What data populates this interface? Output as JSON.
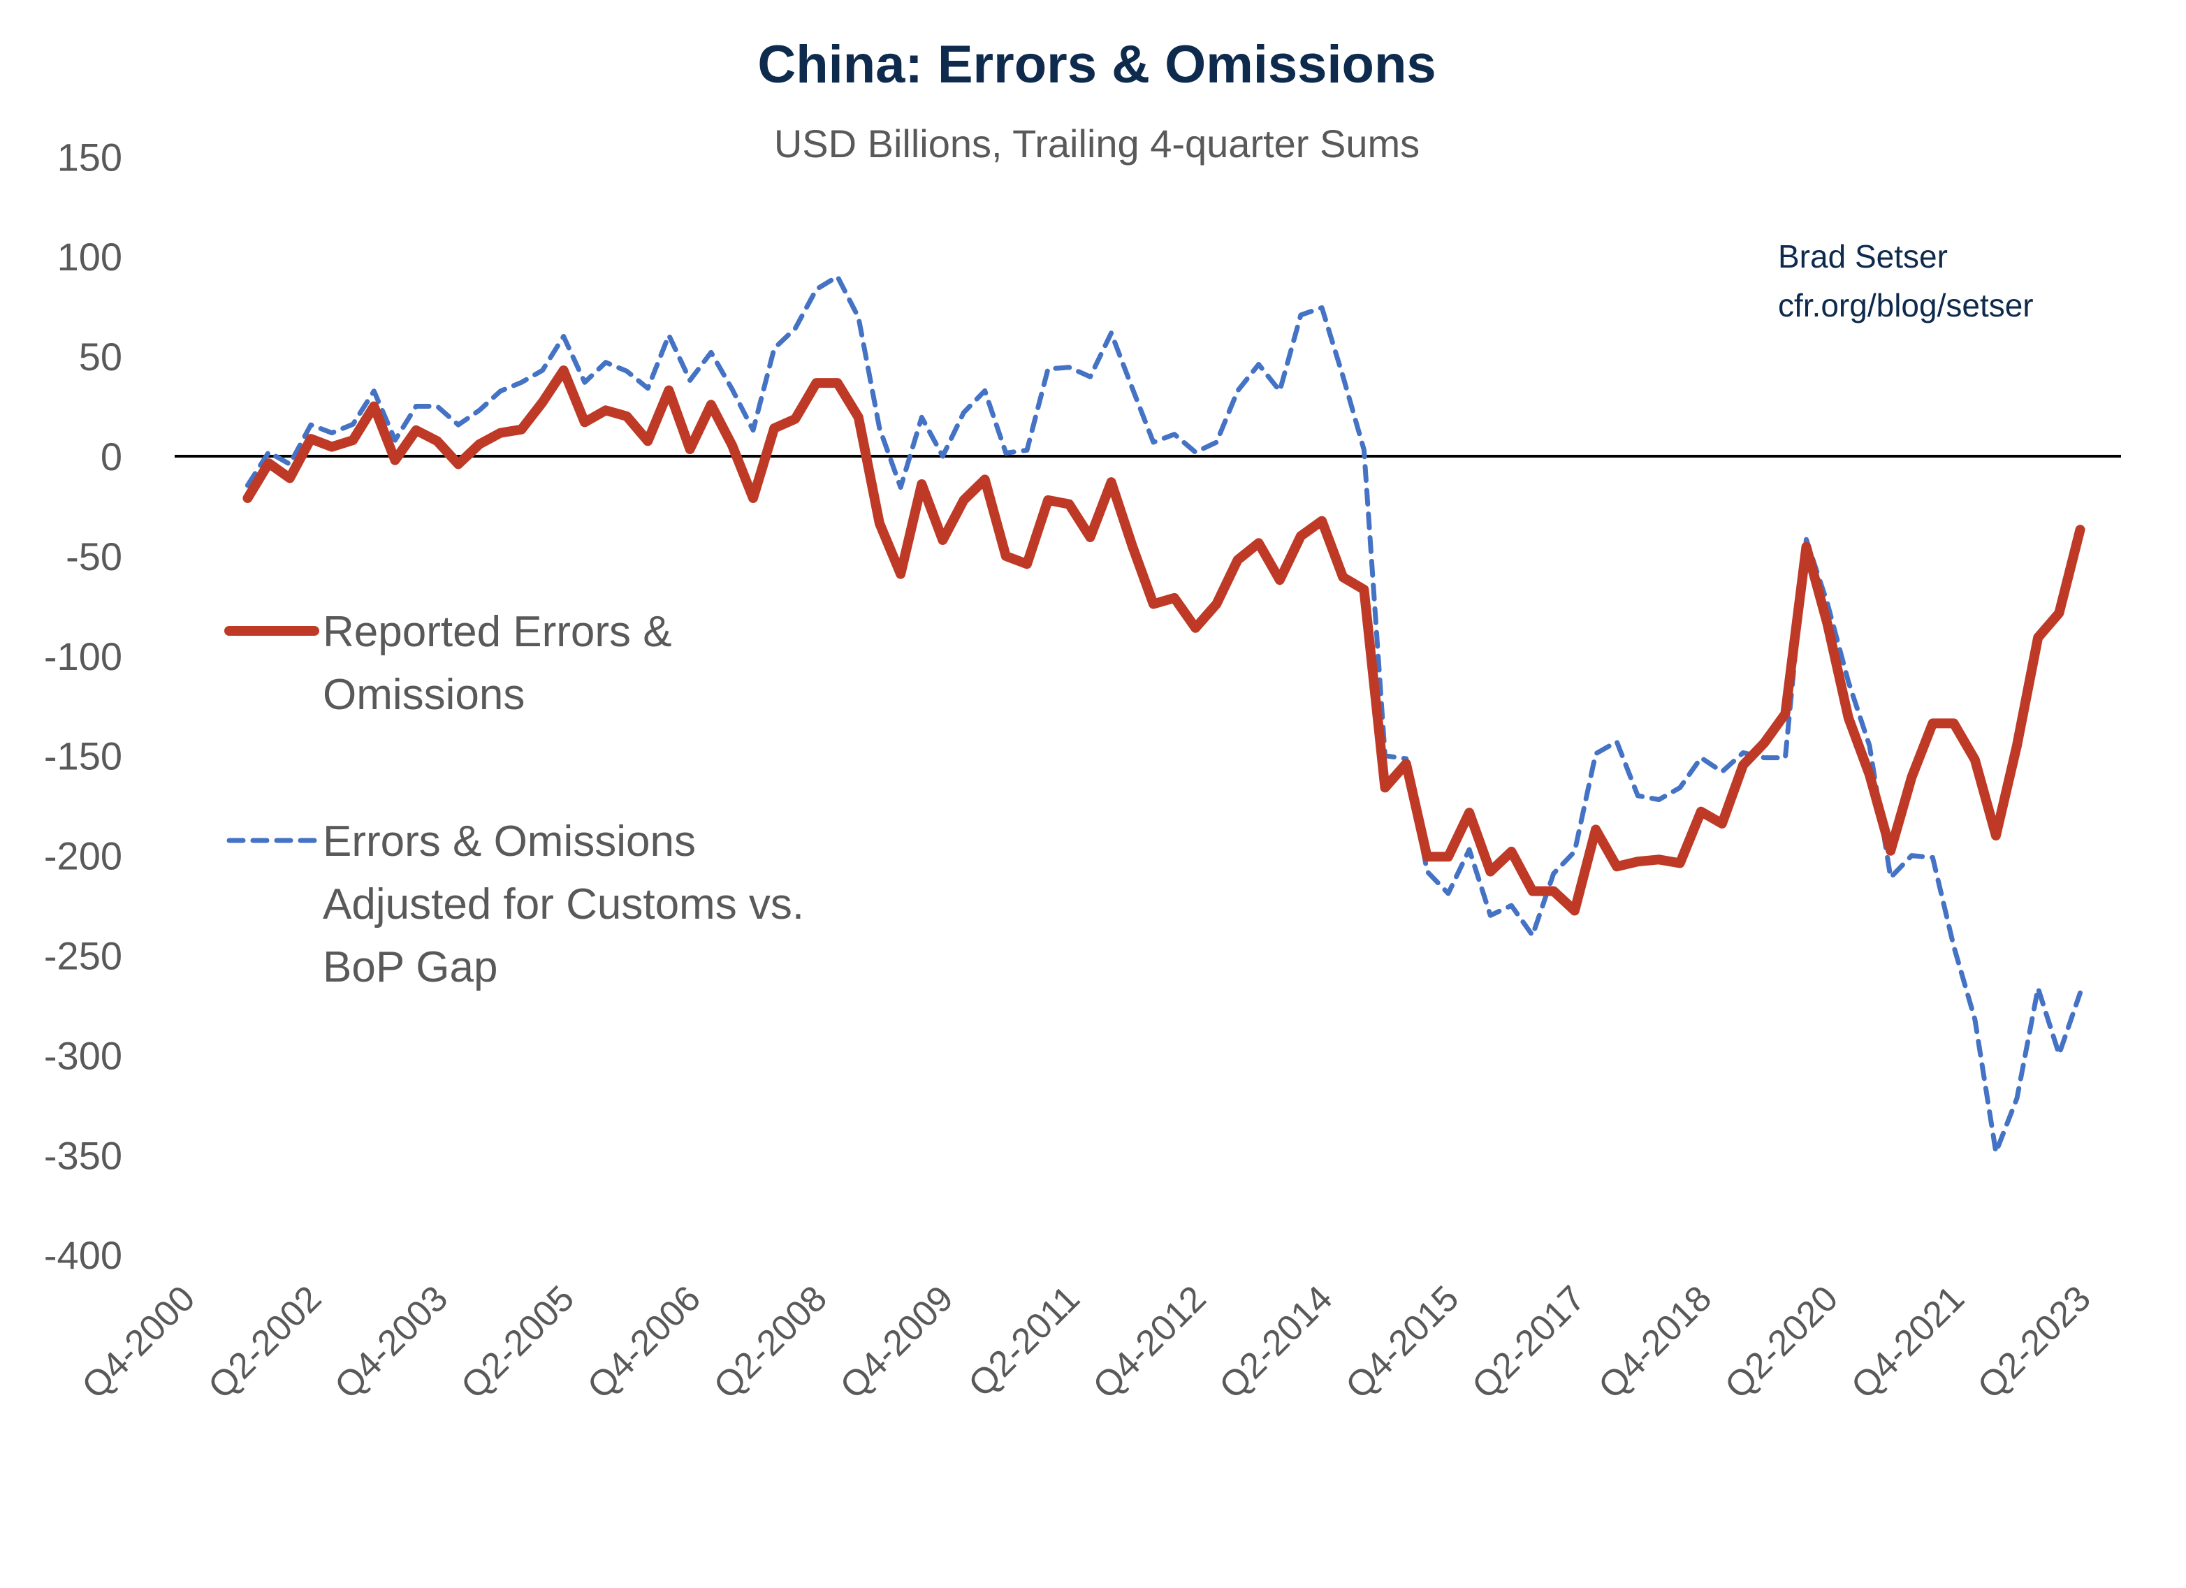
{
  "chart_data": {
    "type": "line",
    "title": "China: Errors & Omissions",
    "subtitle": "USD Billions, Trailing 4-quarter Sums",
    "annotation": [
      "Brad Setser",
      "cfr.org/blog/setser"
    ],
    "xlabel": "",
    "ylabel": "",
    "ylim": [
      -400,
      150
    ],
    "y_ticks": [
      150,
      100,
      50,
      0,
      -50,
      -100,
      -150,
      -200,
      -250,
      -300,
      -350,
      -400
    ],
    "x_tick_labels": [
      "Q4-2000",
      "Q2-2002",
      "Q4-2003",
      "Q2-2005",
      "Q4-2006",
      "Q2-2008",
      "Q4-2009",
      "Q2-2011",
      "Q4-2012",
      "Q2-2014",
      "Q4-2015",
      "Q2-2017",
      "Q4-2018",
      "Q2-2020",
      "Q4-2021",
      "Q2-2023"
    ],
    "x_axis_first": "Q4-2000",
    "x_axis_last": "Q3-2023",
    "x_tick_every_quarters": 6,
    "data_start": "Q3-2001",
    "data_end": "Q2-2023",
    "grid": false,
    "zero_line": true,
    "legend_placement": "left-middle",
    "series": [
      {
        "name": "Reported Errors & Omissions",
        "legend_lines": [
          "Reported Errors &",
          "Omissions"
        ],
        "color": "#be3a26",
        "style": "solid",
        "values": [
          -21,
          -3.5,
          -11,
          8.7,
          4.7,
          8,
          25,
          -2,
          13,
          7.6,
          -4,
          6,
          11.7,
          13.4,
          27,
          43,
          17,
          23,
          20,
          7.6,
          33,
          3.5,
          25.8,
          5.5,
          -21,
          14,
          18.7,
          36.7,
          36.7,
          19.5,
          -33.6,
          -59,
          -14,
          -42,
          -22,
          -11.7,
          -50,
          -54,
          -22,
          -24,
          -40.6,
          -13,
          -45,
          -74,
          -71,
          -86,
          -74,
          -52,
          -43.5,
          -62,
          -40,
          -32.4,
          -60.6,
          -66.8,
          -166,
          -154,
          -200.6,
          -200.6,
          -178.5,
          -208,
          -198,
          -217.8,
          -217.8,
          -227.6,
          -187,
          -205.5,
          -203,
          -202,
          -203.8,
          -178,
          -184,
          -154.7,
          -143.6,
          -129,
          -45.4,
          -84,
          -131,
          -159.6,
          -197.6,
          -160.8,
          -133.8,
          -133.8,
          -152,
          -190,
          -144.9,
          -90.8,
          -78.6,
          -36.8
        ]
      },
      {
        "name": "Errors & Omissions Adjusted for Customs vs. BoP Gap",
        "legend_lines": [
          "Errors & Omissions",
          "Adjusted for Customs vs.",
          "BoP Gap"
        ],
        "color": "#4472c4",
        "style": "dashed",
        "values": [
          -14.6,
          2,
          -4,
          15.7,
          11.7,
          16,
          32.6,
          8,
          25,
          25,
          15.7,
          23,
          32.6,
          37,
          43,
          60,
          37,
          47,
          42.6,
          34,
          60.6,
          38,
          52,
          33.6,
          13,
          54,
          64,
          83.6,
          90,
          69.5,
          14,
          -15.6,
          19.5,
          0,
          21.9,
          32.8,
          1.6,
          3,
          43.7,
          44.5,
          39.8,
          61.7,
          34,
          7,
          11,
          2,
          7,
          32.7,
          46,
          32.7,
          70.7,
          74.4,
          40,
          3.2,
          -150,
          -151.5,
          -208,
          -219,
          -197,
          -230,
          -225,
          -240,
          -209,
          -198,
          -149,
          -143,
          -170,
          -172,
          -166,
          -151,
          -158,
          -148.5,
          -151,
          -151,
          -41.7,
          -73.7,
          -113,
          -145,
          -211,
          -200,
          -201,
          -245.5,
          -282,
          -348.6,
          -321.6,
          -266.4,
          -299.5,
          -268.8
        ]
      }
    ]
  }
}
